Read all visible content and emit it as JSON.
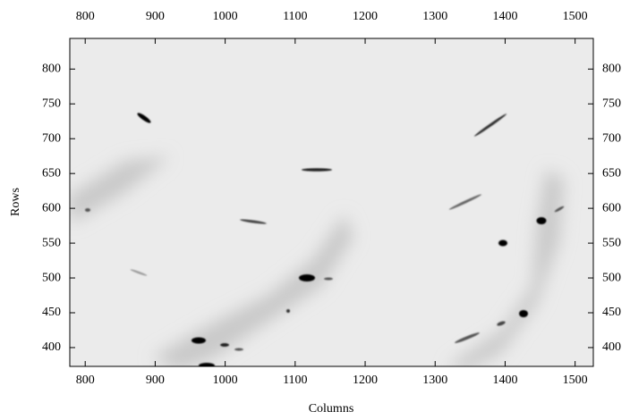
{
  "chart_data": {
    "type": "image",
    "x_label": "Columns",
    "y_label": "Rows",
    "xlim": [
      778,
      1526
    ],
    "xticks": [
      800,
      900,
      1000,
      1100,
      1200,
      1300,
      1400,
      1500
    ],
    "ylim": [
      373,
      844
    ],
    "yticks": [
      400,
      450,
      500,
      550,
      600,
      650,
      700,
      750,
      800
    ]
  }
}
